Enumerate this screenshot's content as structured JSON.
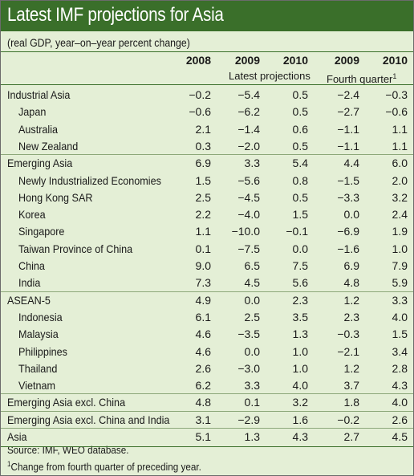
{
  "title": "Latest IMF projections for Asia",
  "subtitle": "(real GDP, year–on–year percent change)",
  "columns": [
    "2008",
    "2009",
    "2010",
    "2009",
    "2010"
  ],
  "subheaders": {
    "latest": "Latest projections",
    "fourth": "Fourth quarter",
    "fourth_sup": "1"
  },
  "rows": [
    {
      "label": "Industrial Asia",
      "indent": false,
      "values": [
        "−0.2",
        "−5.4",
        "0.5",
        "−2.4",
        "−0.3"
      ]
    },
    {
      "label": "Japan",
      "indent": true,
      "values": [
        "−0.6",
        "−6.2",
        "0.5",
        "−2.7",
        "−0.6"
      ]
    },
    {
      "label": "Australia",
      "indent": true,
      "values": [
        "2.1",
        "−1.4",
        "0.6",
        "−1.1",
        "1.1"
      ]
    },
    {
      "label": "New Zealand",
      "indent": true,
      "values": [
        "0.3",
        "−2.0",
        "0.5",
        "−1.1",
        "1.1"
      ]
    },
    {
      "label": "Emerging Asia",
      "indent": false,
      "values": [
        "6.9",
        "3.3",
        "5.4",
        "4.4",
        "6.0"
      ]
    },
    {
      "label": "Newly Industrialized Economies",
      "indent": true,
      "values": [
        "1.5",
        "−5.6",
        "0.8",
        "−1.5",
        "2.0"
      ]
    },
    {
      "label": "Hong Kong SAR",
      "indent": true,
      "values": [
        "2.5",
        "−4.5",
        "0.5",
        "−3.3",
        "3.2"
      ]
    },
    {
      "label": "Korea",
      "indent": true,
      "values": [
        "2.2",
        "−4.0",
        "1.5",
        "0.0",
        "2.4"
      ]
    },
    {
      "label": "Singapore",
      "indent": true,
      "values": [
        "1.1",
        "−10.0",
        "−0.1",
        "−6.9",
        "1.9"
      ]
    },
    {
      "label": "Taiwan Province of China",
      "indent": true,
      "values": [
        "0.1",
        "−7.5",
        "0.0",
        "−1.6",
        "1.0"
      ]
    },
    {
      "label": "China",
      "indent": true,
      "values": [
        "9.0",
        "6.5",
        "7.5",
        "6.9",
        "7.9"
      ]
    },
    {
      "label": "India",
      "indent": true,
      "values": [
        "7.3",
        "4.5",
        "5.6",
        "4.8",
        "5.9"
      ]
    },
    {
      "label": "ASEAN-5",
      "indent": false,
      "values": [
        "4.9",
        "0.0",
        "2.3",
        "1.2",
        "3.3"
      ]
    },
    {
      "label": "Indonesia",
      "indent": true,
      "values": [
        "6.1",
        "2.5",
        "3.5",
        "2.3",
        "4.0"
      ]
    },
    {
      "label": "Malaysia",
      "indent": true,
      "values": [
        "4.6",
        "−3.5",
        "1.3",
        "−0.3",
        "1.5"
      ]
    },
    {
      "label": "Philippines",
      "indent": true,
      "values": [
        "4.6",
        "0.0",
        "1.0",
        "−2.1",
        "3.4"
      ]
    },
    {
      "label": "Thailand",
      "indent": true,
      "values": [
        "2.6",
        "−3.0",
        "1.0",
        "1.2",
        "2.8"
      ]
    },
    {
      "label": "Vietnam",
      "indent": true,
      "values": [
        "6.2",
        "3.3",
        "4.0",
        "3.7",
        "4.3"
      ]
    },
    {
      "label": "Emerging Asia excl. China",
      "indent": false,
      "values": [
        "4.8",
        "0.1",
        "3.2",
        "1.8",
        "4.0"
      ]
    },
    {
      "label": "Emerging Asia excl. China and India",
      "indent": false,
      "values": [
        "3.1",
        "−2.9",
        "1.6",
        "−0.2",
        "2.6"
      ]
    },
    {
      "label": "Asia",
      "indent": false,
      "values": [
        "5.1",
        "1.3",
        "4.3",
        "2.7",
        "4.5"
      ]
    }
  ],
  "source": "Source: IMF, WEO database.",
  "footnote_mark": "1",
  "footnote": "Change from fourth quarter of preceding year.",
  "colors": {
    "title_bar": "#3a6f2a",
    "background": "#e4efd6",
    "rule": "#3a6f2a"
  }
}
